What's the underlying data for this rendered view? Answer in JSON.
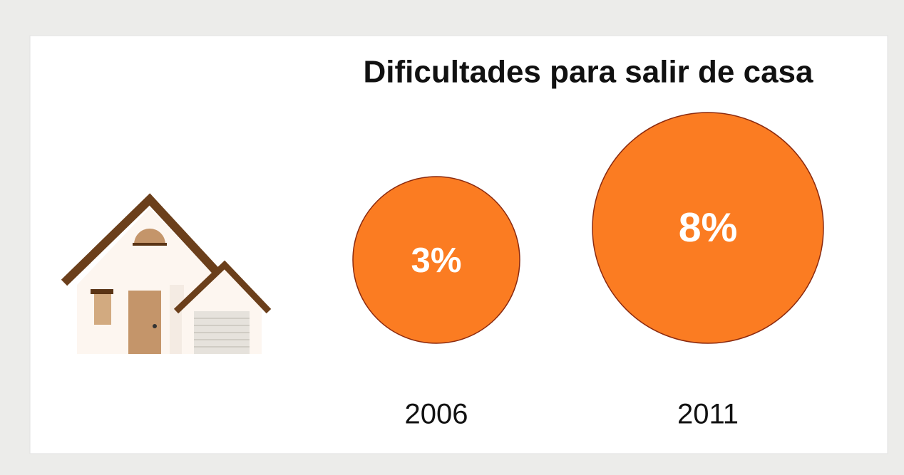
{
  "chart_data": {
    "type": "bubble",
    "title": "Dificultades para salir de casa",
    "categories": [
      "2006",
      "2011"
    ],
    "values": [
      3,
      8
    ],
    "value_labels": [
      "3%",
      "8%"
    ],
    "color": "#fb7c22"
  }
}
